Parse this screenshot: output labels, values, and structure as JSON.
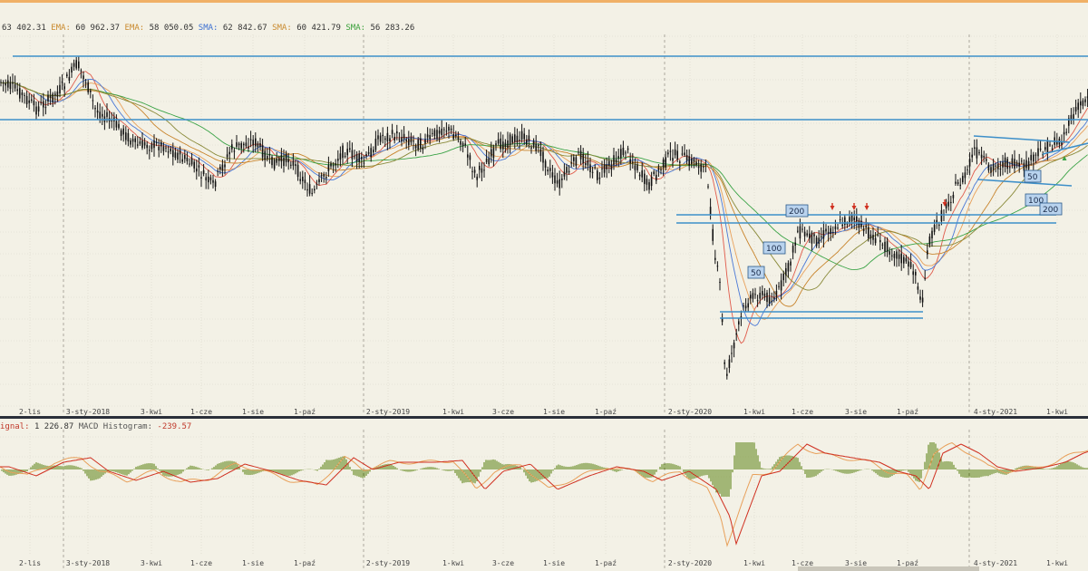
{
  "legend_main": [
    {
      "text": "63 402.31",
      "color": "#333333"
    },
    {
      "text": " EMA: ",
      "color": "#c98a2e"
    },
    {
      "text": "60 962.37",
      "color": "#333333"
    },
    {
      "text": " EMA: ",
      "color": "#c98a2e"
    },
    {
      "text": "58 050.05",
      "color": "#333333"
    },
    {
      "text": " SMA: ",
      "color": "#3b6fd1"
    },
    {
      "text": "62 842.67",
      "color": "#333333"
    },
    {
      "text": " SMA: ",
      "color": "#c98a2e"
    },
    {
      "text": "60 421.79",
      "color": "#333333"
    },
    {
      "text": " SMA: ",
      "color": "#3aa03a"
    },
    {
      "text": "56 283.26",
      "color": "#333333"
    }
  ],
  "legend_macd": [
    {
      "text": "ignal: ",
      "color": "#c0392b"
    },
    {
      "text": "1 226.87",
      "color": "#333333"
    },
    {
      "text": " MACD Histogram: ",
      "color": "#555555"
    },
    {
      "text": "-239.57",
      "color": "#c0392b"
    }
  ],
  "colors": {
    "background": "#f3f1e6",
    "grid": "#d9d6c9",
    "separator": "#b9b6aa",
    "candles": "#111111",
    "support_lines": "#3d8fc9",
    "ma_red": "#e05a4a",
    "ma_orange": "#e8a05a",
    "ma_blue": "#4a78d6",
    "ma_green": "#3aa346",
    "ma_olive": "#8a8a3a",
    "macd_line": "#e8a05a",
    "signal_line": "#d03020",
    "hist_bar": "#6d8f2a",
    "arrow_red": "#d03020",
    "arrow_green": "#3aa346"
  },
  "time_labels": [
    "2-lis",
    "3-sty-2018",
    "3-kwi",
    "1-cze",
    "1-sie",
    "1-paź",
    "2-sty-2019",
    "1-kwi",
    "3-cze",
    "1-sie",
    "1-paź",
    "2-sty-2020",
    "1-kwi",
    "1-cze",
    "3-sie",
    "1-paź",
    "4-sty-2021",
    "1-kwi"
  ],
  "ma_boxes": [
    "200",
    "100",
    "50",
    "50",
    "100",
    "200"
  ],
  "chart_data": {
    "type": "candlestick",
    "indicators": [
      "EMA",
      "EMA",
      "SMA",
      "SMA",
      "SMA",
      "MACD",
      "MACD Histogram"
    ],
    "x_tick_labels": [
      "2-lis",
      "3-sty-2018",
      "3-kwi",
      "1-cze",
      "1-sie",
      "1-paź",
      "2-sty-2019",
      "1-kwi",
      "3-cze",
      "1-sie",
      "1-paź",
      "2-sty-2020",
      "1-kwi",
      "1-cze",
      "3-sie",
      "1-paź",
      "4-sty-2021",
      "1-kwi"
    ],
    "year_separators": [
      "3-sty-2018",
      "2-sty-2019",
      "2-sty-2020",
      "4-sty-2021"
    ],
    "ma_labels": [
      "200",
      "100",
      "50",
      "50",
      "100",
      "200"
    ],
    "macd_signal": "1 226.87",
    "macd_histogram": "-239.57",
    "grid": true
  }
}
